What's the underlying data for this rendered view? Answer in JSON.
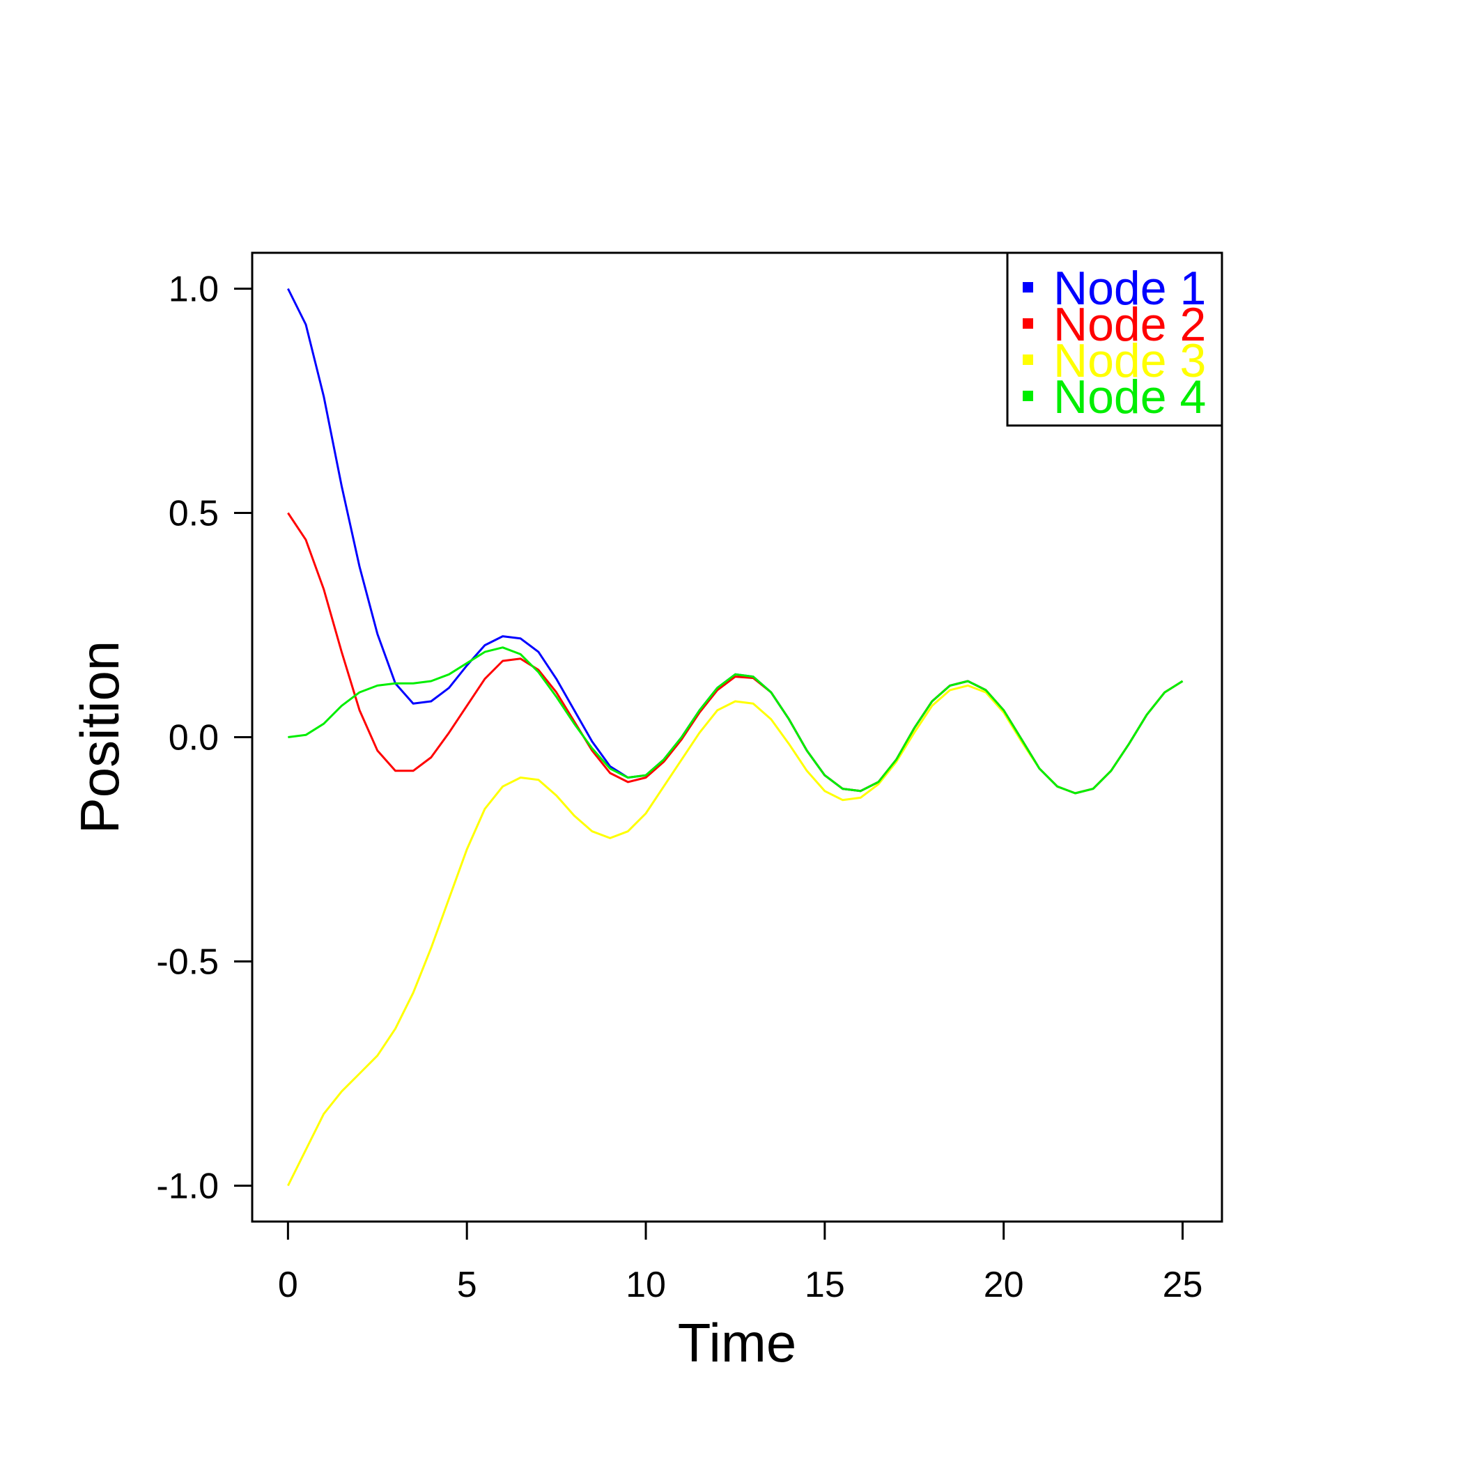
{
  "chart_data": {
    "type": "line",
    "title": "",
    "xlabel": "Time",
    "ylabel": "Position",
    "xlim": [
      -1,
      26.1
    ],
    "ylim": [
      -1.08,
      1.08
    ],
    "x_ticks": [
      0,
      5,
      10,
      15,
      20,
      25
    ],
    "x_tick_labels": [
      "0",
      "5",
      "10",
      "15",
      "20",
      "25"
    ],
    "y_ticks": [
      1.0,
      0.5,
      0.0,
      -0.5,
      -1.0
    ],
    "y_tick_labels": [
      "1.0",
      "0.5",
      "0.0",
      "-0.5",
      "-1.0"
    ],
    "grid": false,
    "legend_position": "top-right",
    "series": [
      {
        "name": "Node 1",
        "color": "#0000ff",
        "points": [
          [
            0,
            1.0
          ],
          [
            0.5,
            0.92
          ],
          [
            1,
            0.76
          ],
          [
            1.5,
            0.56
          ],
          [
            2,
            0.38
          ],
          [
            2.5,
            0.23
          ],
          [
            3,
            0.12
          ],
          [
            3.5,
            0.075
          ],
          [
            4,
            0.08
          ],
          [
            4.5,
            0.11
          ],
          [
            5,
            0.16
          ],
          [
            5.5,
            0.205
          ],
          [
            6,
            0.225
          ],
          [
            6.5,
            0.22
          ],
          [
            7,
            0.19
          ],
          [
            7.5,
            0.13
          ],
          [
            8,
            0.06
          ],
          [
            8.5,
            -0.01
          ],
          [
            9,
            -0.065
          ],
          [
            9.5,
            -0.09
          ],
          [
            10,
            -0.085
          ],
          [
            10.5,
            -0.05
          ],
          [
            11,
            0.0
          ],
          [
            11.5,
            0.06
          ],
          [
            12,
            0.11
          ],
          [
            12.5,
            0.14
          ],
          [
            13,
            0.135
          ],
          [
            13.5,
            0.1
          ],
          [
            14,
            0.04
          ],
          [
            14.5,
            -0.03
          ],
          [
            15,
            -0.085
          ],
          [
            15.5,
            -0.115
          ],
          [
            16,
            -0.12
          ],
          [
            16.5,
            -0.1
          ],
          [
            17,
            -0.05
          ],
          [
            17.5,
            0.02
          ],
          [
            18,
            0.08
          ],
          [
            18.5,
            0.115
          ],
          [
            19,
            0.125
          ],
          [
            19.5,
            0.105
          ],
          [
            20,
            0.06
          ],
          [
            20.5,
            -0.005
          ],
          [
            21,
            -0.07
          ],
          [
            21.5,
            -0.11
          ],
          [
            22,
            -0.125
          ],
          [
            22.5,
            -0.115
          ],
          [
            23,
            -0.075
          ],
          [
            23.5,
            -0.015
          ],
          [
            24,
            0.05
          ],
          [
            24.5,
            0.1
          ],
          [
            25,
            0.125
          ]
        ]
      },
      {
        "name": "Node 2",
        "color": "#ff0000",
        "points": [
          [
            0,
            0.5
          ],
          [
            0.5,
            0.44
          ],
          [
            1,
            0.33
          ],
          [
            1.5,
            0.19
          ],
          [
            2,
            0.06
          ],
          [
            2.5,
            -0.03
          ],
          [
            3,
            -0.075
          ],
          [
            3.5,
            -0.075
          ],
          [
            4,
            -0.045
          ],
          [
            4.5,
            0.01
          ],
          [
            5,
            0.07
          ],
          [
            5.5,
            0.13
          ],
          [
            6,
            0.17
          ],
          [
            6.5,
            0.175
          ],
          [
            7,
            0.15
          ],
          [
            7.5,
            0.1
          ],
          [
            8,
            0.035
          ],
          [
            8.5,
            -0.03
          ],
          [
            9,
            -0.08
          ],
          [
            9.5,
            -0.1
          ],
          [
            10,
            -0.09
          ],
          [
            10.5,
            -0.055
          ],
          [
            11,
            -0.005
          ],
          [
            11.5,
            0.055
          ],
          [
            12,
            0.105
          ],
          [
            12.5,
            0.135
          ],
          [
            13,
            0.132
          ],
          [
            13.5,
            0.1
          ],
          [
            14,
            0.04
          ],
          [
            14.5,
            -0.03
          ],
          [
            15,
            -0.085
          ],
          [
            15.5,
            -0.115
          ],
          [
            16,
            -0.12
          ],
          [
            16.5,
            -0.1
          ],
          [
            17,
            -0.05
          ],
          [
            17.5,
            0.02
          ],
          [
            18,
            0.08
          ],
          [
            18.5,
            0.115
          ],
          [
            19,
            0.125
          ],
          [
            19.5,
            0.105
          ],
          [
            20,
            0.06
          ],
          [
            20.5,
            -0.005
          ],
          [
            21,
            -0.07
          ],
          [
            21.5,
            -0.11
          ],
          [
            22,
            -0.125
          ],
          [
            22.5,
            -0.115
          ],
          [
            23,
            -0.075
          ],
          [
            23.5,
            -0.015
          ],
          [
            24,
            0.05
          ],
          [
            24.5,
            0.1
          ],
          [
            25,
            0.125
          ]
        ]
      },
      {
        "name": "Node 3",
        "color": "#ffff00",
        "points": [
          [
            0,
            -1.0
          ],
          [
            0.5,
            -0.92
          ],
          [
            1,
            -0.84
          ],
          [
            1.5,
            -0.79
          ],
          [
            2,
            -0.75
          ],
          [
            2.5,
            -0.71
          ],
          [
            3,
            -0.65
          ],
          [
            3.5,
            -0.57
          ],
          [
            4,
            -0.47
          ],
          [
            4.5,
            -0.36
          ],
          [
            5,
            -0.25
          ],
          [
            5.5,
            -0.16
          ],
          [
            6,
            -0.11
          ],
          [
            6.5,
            -0.09
          ],
          [
            7,
            -0.095
          ],
          [
            7.5,
            -0.13
          ],
          [
            8,
            -0.175
          ],
          [
            8.5,
            -0.21
          ],
          [
            9,
            -0.225
          ],
          [
            9.5,
            -0.21
          ],
          [
            10,
            -0.17
          ],
          [
            10.5,
            -0.11
          ],
          [
            11,
            -0.05
          ],
          [
            11.5,
            0.01
          ],
          [
            12,
            0.06
          ],
          [
            12.5,
            0.08
          ],
          [
            13,
            0.075
          ],
          [
            13.5,
            0.04
          ],
          [
            14,
            -0.015
          ],
          [
            14.5,
            -0.075
          ],
          [
            15,
            -0.12
          ],
          [
            15.5,
            -0.14
          ],
          [
            16,
            -0.135
          ],
          [
            16.5,
            -0.105
          ],
          [
            17,
            -0.055
          ],
          [
            17.5,
            0.01
          ],
          [
            18,
            0.07
          ],
          [
            18.5,
            0.105
          ],
          [
            19,
            0.115
          ],
          [
            19.5,
            0.1
          ],
          [
            20,
            0.055
          ],
          [
            20.5,
            -0.01
          ],
          [
            21,
            -0.07
          ],
          [
            21.5,
            -0.11
          ],
          [
            22,
            -0.125
          ],
          [
            22.5,
            -0.115
          ],
          [
            23,
            -0.075
          ],
          [
            23.5,
            -0.015
          ],
          [
            24,
            0.05
          ],
          [
            24.5,
            0.1
          ],
          [
            25,
            0.125
          ]
        ]
      },
      {
        "name": "Node 4",
        "color": "#00ee00",
        "points": [
          [
            0,
            0.0
          ],
          [
            0.5,
            0.005
          ],
          [
            1,
            0.03
          ],
          [
            1.5,
            0.07
          ],
          [
            2,
            0.1
          ],
          [
            2.5,
            0.115
          ],
          [
            3,
            0.12
          ],
          [
            3.5,
            0.12
          ],
          [
            4,
            0.125
          ],
          [
            4.5,
            0.14
          ],
          [
            5,
            0.165
          ],
          [
            5.5,
            0.19
          ],
          [
            6,
            0.2
          ],
          [
            6.5,
            0.185
          ],
          [
            7,
            0.145
          ],
          [
            7.5,
            0.09
          ],
          [
            8,
            0.03
          ],
          [
            8.5,
            -0.025
          ],
          [
            9,
            -0.07
          ],
          [
            9.5,
            -0.09
          ],
          [
            10,
            -0.085
          ],
          [
            10.5,
            -0.05
          ],
          [
            11,
            0.0
          ],
          [
            11.5,
            0.06
          ],
          [
            12,
            0.11
          ],
          [
            12.5,
            0.14
          ],
          [
            13,
            0.135
          ],
          [
            13.5,
            0.1
          ],
          [
            14,
            0.04
          ],
          [
            14.5,
            -0.03
          ],
          [
            15,
            -0.085
          ],
          [
            15.5,
            -0.115
          ],
          [
            16,
            -0.12
          ],
          [
            16.5,
            -0.1
          ],
          [
            17,
            -0.05
          ],
          [
            17.5,
            0.02
          ],
          [
            18,
            0.08
          ],
          [
            18.5,
            0.115
          ],
          [
            19,
            0.125
          ],
          [
            19.5,
            0.105
          ],
          [
            20,
            0.06
          ],
          [
            20.5,
            -0.005
          ],
          [
            21,
            -0.07
          ],
          [
            21.5,
            -0.11
          ],
          [
            22,
            -0.125
          ],
          [
            22.5,
            -0.115
          ],
          [
            23,
            -0.075
          ],
          [
            23.5,
            -0.015
          ],
          [
            24,
            0.05
          ],
          [
            24.5,
            0.1
          ],
          [
            25,
            0.125
          ]
        ]
      }
    ]
  }
}
